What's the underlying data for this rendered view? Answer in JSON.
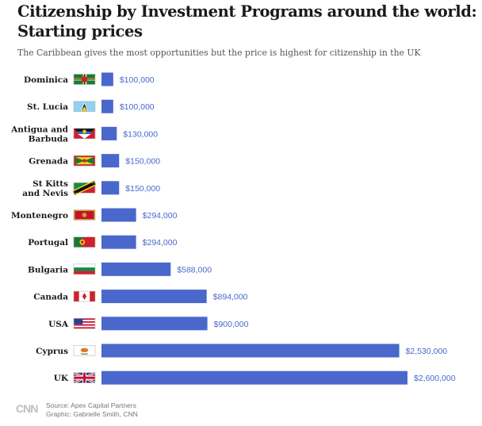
{
  "title": "Citizenship by Investment Programs around the world: Starting prices",
  "subtitle": "The Caribbean gives the most opportunities but the price is highest for citizenship in the UK",
  "source_text": "Source: Apex Capital Partners",
  "graphic_text": "Graphic: Gabrielle Smith, CNN",
  "logo_text": "CNN",
  "colors": {
    "bar": "#4a68cc",
    "value_label": "#4a68cc"
  },
  "chart_data": {
    "type": "bar",
    "orientation": "horizontal",
    "title": "Citizenship by Investment Programs around the world: Starting prices",
    "subtitle": "The Caribbean gives the most opportunities but the price is highest for citizenship in the UK",
    "categories": [
      "Dominica",
      "St. Lucia",
      "Antigua and Barbuda",
      "Grenada",
      "St Kitts and Nevis",
      "Montenegro",
      "Portugal",
      "Bulgaria",
      "Canada",
      "USA",
      "Cyprus",
      "UK"
    ],
    "category_lines": [
      [
        "Dominica"
      ],
      [
        "St. Lucia"
      ],
      [
        "Antigua and",
        "Barbuda"
      ],
      [
        "Grenada"
      ],
      [
        "St Kitts",
        "and Nevis"
      ],
      [
        "Montenegro"
      ],
      [
        "Portugal"
      ],
      [
        "Bulgaria"
      ],
      [
        "Canada"
      ],
      [
        "USA"
      ],
      [
        "Cyprus"
      ],
      [
        "UK"
      ]
    ],
    "values": [
      100000,
      100000,
      130000,
      150000,
      150000,
      294000,
      294000,
      588000,
      894000,
      900000,
      2530000,
      2600000
    ],
    "value_labels": [
      "$100,000",
      "$100,000",
      "$130,000",
      "$150,000",
      "$150,000",
      "$294,000",
      "$294,000",
      "$588,000",
      "$894,000",
      "$900,000",
      "$2,530,000",
      "$2,600,000"
    ],
    "flag_icons": [
      "dominica-flag-icon",
      "st-lucia-flag-icon",
      "antigua-barbuda-flag-icon",
      "grenada-flag-icon",
      "st-kitts-nevis-flag-icon",
      "montenegro-flag-icon",
      "portugal-flag-icon",
      "bulgaria-flag-icon",
      "canada-flag-icon",
      "usa-flag-icon",
      "cyprus-flag-icon",
      "uk-flag-icon"
    ],
    "xlim": [
      0,
      2600000
    ],
    "grid": false,
    "legend": "none"
  }
}
